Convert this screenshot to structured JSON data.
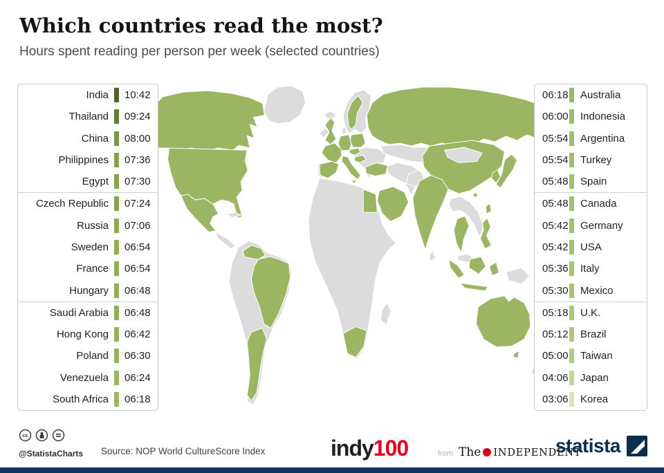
{
  "page": {
    "bottom_bar_color": "#11375f"
  },
  "header": {
    "title": "Which countries read the most?",
    "subtitle": "Hours spent reading per person per week (selected countries)"
  },
  "map": {
    "ramp": [
      "#4d6327",
      "#8fae54",
      "#d6e5b3"
    ],
    "land_color": "#dcdcdc",
    "border_color": "#ffffff"
  },
  "chart_data": {
    "type": "heatmap",
    "subtype": "choropleth world map with ranked value lists",
    "title": "Which countries read the most?",
    "subtitle": "Hours spent reading per person per week (selected countries)",
    "unit": "hours:minutes per person per week",
    "legend": "dark green = most hours, light green = fewest hours, gray = not surveyed",
    "entries": [
      {
        "country": "India",
        "time": "10:42"
      },
      {
        "country": "Thailand",
        "time": "09:24"
      },
      {
        "country": "China",
        "time": "08:00"
      },
      {
        "country": "Philippines",
        "time": "07:36"
      },
      {
        "country": "Egypt",
        "time": "07:30"
      },
      {
        "country": "Czech Republic",
        "time": "07:24"
      },
      {
        "country": "Russia",
        "time": "07:06"
      },
      {
        "country": "Sweden",
        "time": "06:54"
      },
      {
        "country": "France",
        "time": "06:54"
      },
      {
        "country": "Hungary",
        "time": "06:48"
      },
      {
        "country": "Saudi Arabia",
        "time": "06:48"
      },
      {
        "country": "Hong Kong",
        "time": "06:42"
      },
      {
        "country": "Poland",
        "time": "06:30"
      },
      {
        "country": "Venezuela",
        "time": "06:24"
      },
      {
        "country": "South Africa",
        "time": "06:18"
      },
      {
        "country": "Australia",
        "time": "06:18"
      },
      {
        "country": "Indonesia",
        "time": "06:00"
      },
      {
        "country": "Argentina",
        "time": "05:54"
      },
      {
        "country": "Turkey",
        "time": "05:54"
      },
      {
        "country": "Spain",
        "time": "05:48"
      },
      {
        "country": "Canada",
        "time": "05:48"
      },
      {
        "country": "Germany",
        "time": "05:42"
      },
      {
        "country": "USA",
        "time": "05:42"
      },
      {
        "country": "Italy",
        "time": "05:36"
      },
      {
        "country": "Mexico",
        "time": "05:30"
      },
      {
        "country": "U.K.",
        "time": "05:18"
      },
      {
        "country": "Brazil",
        "time": "05:12"
      },
      {
        "country": "Taiwan",
        "time": "05:00"
      },
      {
        "country": "Japan",
        "time": "04:06"
      },
      {
        "country": "Korea",
        "time": "03:06"
      }
    ]
  },
  "footer": {
    "handle": "@StatistaCharts",
    "source": "Source: NOP World CultureScore Index",
    "indy100": {
      "part1": "indy",
      "part2": "100",
      "accent_color": "#e4001c"
    },
    "independent": {
      "from": "from",
      "the": "The",
      "name": "INDEPENDENT",
      "dot_color": "#d6001c"
    },
    "statista": {
      "wordmark": "statista",
      "navy": "#0c2e4e"
    }
  }
}
